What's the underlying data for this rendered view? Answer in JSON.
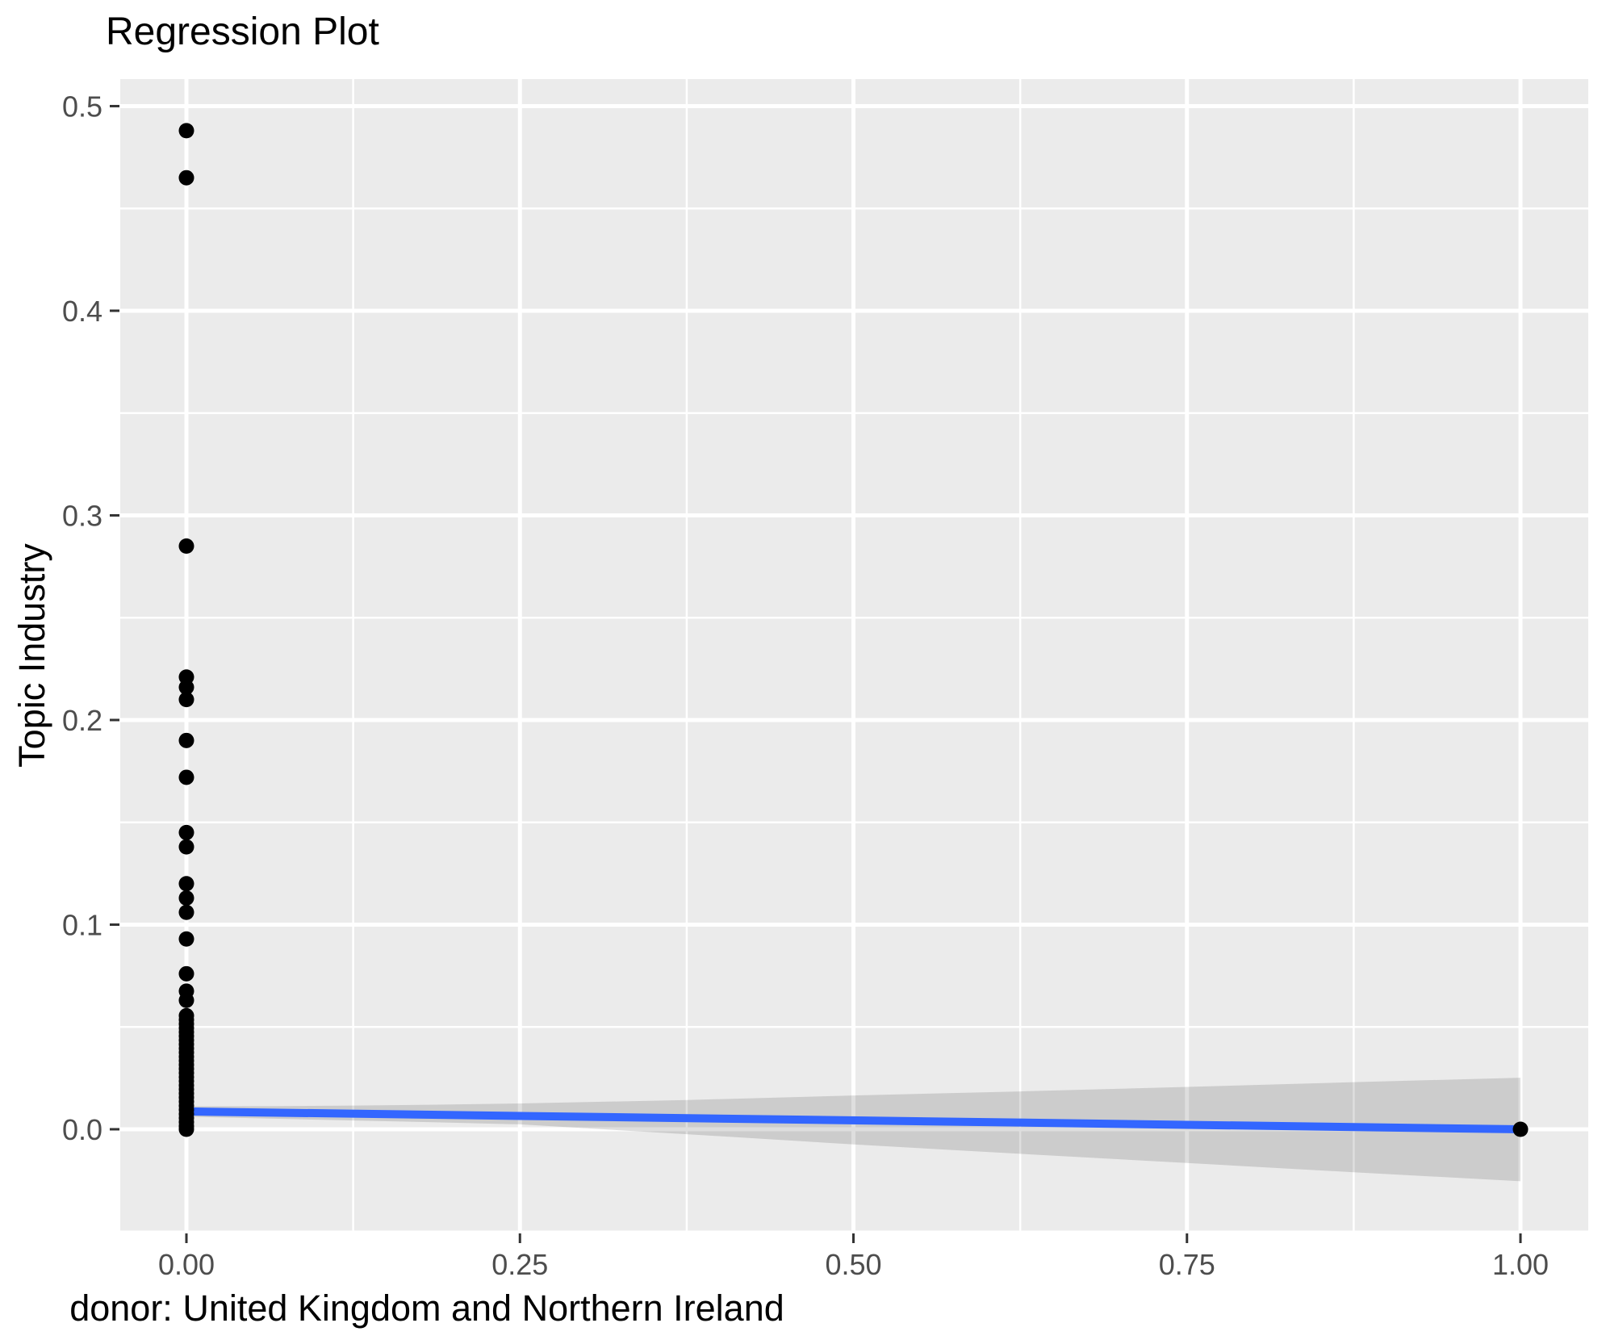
{
  "chart_data": {
    "type": "scatter",
    "title": "Regression Plot",
    "xlabel": "donor: United Kingdom and Northern Ireland",
    "ylabel": "Topic Industry",
    "xlim": [
      -0.0496,
      1.0508
    ],
    "ylim": [
      -0.0505,
      0.5132
    ],
    "grid": true,
    "legend": false,
    "x_ticks": [
      0.0,
      0.25,
      0.5,
      0.75,
      1.0
    ],
    "x_tick_labels": [
      "0.00",
      "0.25",
      "0.50",
      "0.75",
      "1.00"
    ],
    "x_minor_ticks": [
      0.125,
      0.375,
      0.625,
      0.875
    ],
    "y_ticks": [
      0.0,
      0.1,
      0.2,
      0.3,
      0.4,
      0.5
    ],
    "y_tick_labels": [
      "0.0",
      "0.1",
      "0.2",
      "0.3",
      "0.4",
      "0.5"
    ],
    "y_minor_ticks": [
      -0.05,
      0.05,
      0.15,
      0.25,
      0.35,
      0.45
    ],
    "points": [
      [
        0,
        0.488
      ],
      [
        0,
        0.465
      ],
      [
        0,
        0.285
      ],
      [
        0,
        0.221
      ],
      [
        0,
        0.216
      ],
      [
        0,
        0.21
      ],
      [
        0,
        0.19
      ],
      [
        0,
        0.172
      ],
      [
        0,
        0.145
      ],
      [
        0,
        0.138
      ],
      [
        0,
        0.12
      ],
      [
        0,
        0.113
      ],
      [
        0,
        0.106
      ],
      [
        0,
        0.093
      ],
      [
        0,
        0.076
      ],
      [
        0,
        0.0675
      ],
      [
        0,
        0.063
      ],
      [
        0,
        0.0555
      ],
      [
        0,
        0.0535
      ],
      [
        0,
        0.0515
      ],
      [
        0,
        0.0495
      ],
      [
        0,
        0.0475
      ],
      [
        0,
        0.0455
      ],
      [
        0,
        0.0435
      ],
      [
        0,
        0.0415
      ],
      [
        0,
        0.0395
      ],
      [
        0,
        0.0375
      ],
      [
        0,
        0.0355
      ],
      [
        0,
        0.0335
      ],
      [
        0,
        0.0315
      ],
      [
        0,
        0.0295
      ],
      [
        0,
        0.0275
      ],
      [
        0,
        0.0255
      ],
      [
        0,
        0.0235
      ],
      [
        0,
        0.0215
      ],
      [
        0,
        0.0195
      ],
      [
        0,
        0.0175
      ],
      [
        0,
        0.0155
      ],
      [
        0,
        0.0135
      ],
      [
        0,
        0.0115
      ],
      [
        0,
        0.0095
      ],
      [
        0,
        0.0075
      ],
      [
        0,
        0.0055
      ],
      [
        0,
        0.0035
      ],
      [
        0,
        0.0015
      ],
      [
        0,
        0.0
      ],
      [
        1,
        0.0
      ]
    ],
    "regression_line": {
      "x": [
        0,
        1
      ],
      "y": [
        0.0087,
        0.0
      ]
    },
    "confidence_band": {
      "x": [
        0.0,
        0.0625,
        0.125,
        0.1875,
        0.25,
        0.375,
        0.5,
        0.625,
        0.75,
        0.875,
        1.0
      ],
      "upper": [
        0.0112,
        0.0113,
        0.0116,
        0.012,
        0.0126,
        0.0143,
        0.0165,
        0.0185,
        0.0207,
        0.023,
        0.0252
      ],
      "lower": [
        0.0062,
        0.0052,
        0.0043,
        0.0034,
        0.0024,
        -0.0024,
        -0.0074,
        -0.012,
        -0.0165,
        -0.021,
        -0.0254
      ]
    },
    "colors": {
      "panel_background": "#EBEBEB",
      "gridline": "#FFFFFF",
      "point": "#000000",
      "regression_line": "#3366FF",
      "confidence_band": "#000000",
      "confidence_band_opacity": 0.13,
      "tick_label": "#4D4D4D",
      "tick_mark": "#333333",
      "title_text": "#000000"
    }
  }
}
